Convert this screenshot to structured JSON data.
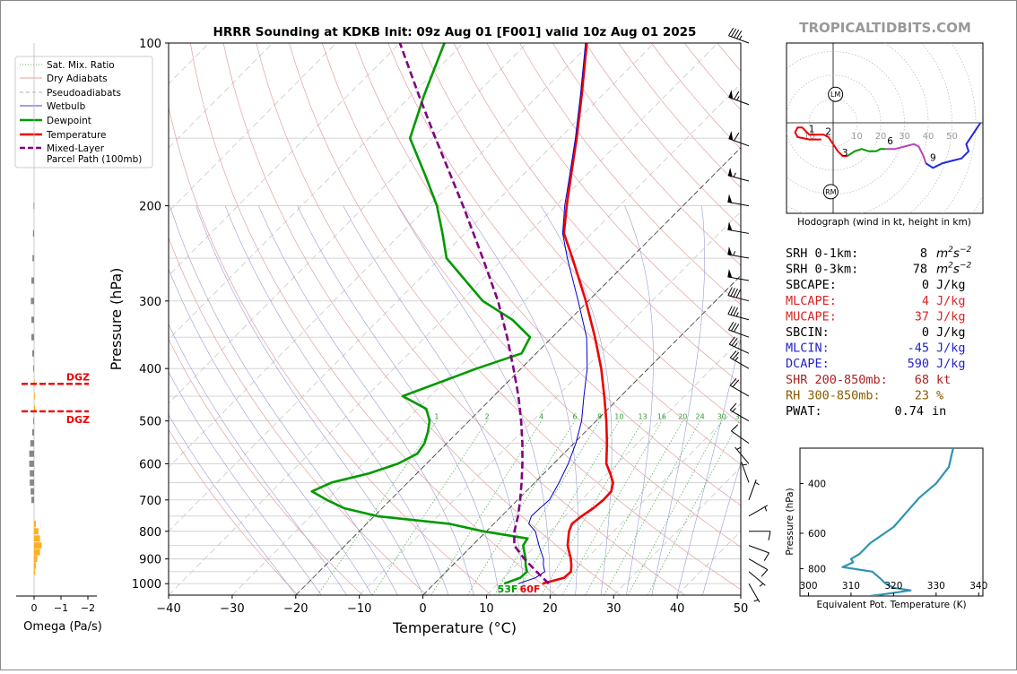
{
  "brand": "TROPICALTIDBITS.COM",
  "chart_data": {
    "type": "skew-t",
    "title": "HRRR Sounding at KDKB Init: 09z Aug 01 [F001] valid 10z Aug 01 2025",
    "xlabel": "Temperature (°C)",
    "ylabel": "Pressure (hPa)",
    "xlim": [
      -40,
      50
    ],
    "ylim": [
      1050,
      100
    ],
    "x_ticks": [
      -40,
      -30,
      -20,
      -10,
      0,
      10,
      20,
      30,
      40,
      50
    ],
    "p_ticks": [
      100,
      200,
      300,
      400,
      500,
      600,
      700,
      800,
      900,
      1000
    ],
    "y_scale": "log",
    "grid": true,
    "mixing_ratio_labels": [
      "1",
      "2",
      "4",
      "6",
      "8",
      "10",
      "13",
      "16",
      "20",
      "24",
      "30",
      "36"
    ],
    "mixing_ratio_values": [
      1,
      2,
      4,
      6,
      8,
      10,
      13,
      16,
      20,
      24,
      30,
      36
    ],
    "legend": {
      "placement": "upper-left-outside",
      "entries": [
        {
          "label": "Sat. Mix. Ratio",
          "style": "dotted",
          "color": "#2ca02c"
        },
        {
          "label": "Dry Adiabats",
          "style": "solid-thin",
          "color": "#e08080"
        },
        {
          "label": "Pseudoadiabats",
          "style": "dashed-thin",
          "color": "#999999"
        },
        {
          "label": "Wetbulb",
          "style": "solid-thin",
          "color": "#0000cc"
        },
        {
          "label": "Dewpoint",
          "style": "solid-thick",
          "color": "#009900"
        },
        {
          "label": "Temperature",
          "style": "solid-thick",
          "color": "#ee0000"
        },
        {
          "label": "Mixed-Layer\nParcel Path (100mb)",
          "style": "dashed-thick",
          "color": "#800080"
        }
      ]
    },
    "series": [
      {
        "name": "Temperature",
        "color": "#ee0000",
        "points": [
          [
            1000,
            17
          ],
          [
            975,
            19.5
          ],
          [
            950,
            19.6
          ],
          [
            925,
            18.7
          ],
          [
            900,
            17.6
          ],
          [
            850,
            15
          ],
          [
            800,
            13
          ],
          [
            775,
            12.3
          ],
          [
            750,
            12.6
          ],
          [
            725,
            13.2
          ],
          [
            700,
            13.5
          ],
          [
            675,
            13.4
          ],
          [
            650,
            12.3
          ],
          [
            625,
            10.4
          ],
          [
            600,
            8.3
          ],
          [
            550,
            5.2
          ],
          [
            500,
            1.6
          ],
          [
            450,
            -2.6
          ],
          [
            400,
            -7.4
          ],
          [
            350,
            -13.3
          ],
          [
            300,
            -20.4
          ],
          [
            250,
            -29.2
          ],
          [
            225,
            -34.4
          ],
          [
            200,
            -38.3
          ],
          [
            175,
            -42.5
          ],
          [
            150,
            -47.3
          ],
          [
            125,
            -53.2
          ],
          [
            100,
            -60.6
          ]
        ]
      },
      {
        "name": "Dewpoint",
        "color": "#009900",
        "points": [
          [
            1000,
            11
          ],
          [
            975,
            12.6
          ],
          [
            950,
            12.7
          ],
          [
            925,
            11.5
          ],
          [
            900,
            10.5
          ],
          [
            850,
            8
          ],
          [
            825,
            7.6
          ],
          [
            800,
            -0.5
          ],
          [
            775,
            -7
          ],
          [
            750,
            -19.5
          ],
          [
            725,
            -26
          ],
          [
            700,
            -30
          ],
          [
            675,
            -33.7
          ],
          [
            650,
            -32
          ],
          [
            625,
            -27.5
          ],
          [
            600,
            -24.5
          ],
          [
            575,
            -23
          ],
          [
            550,
            -23.5
          ],
          [
            525,
            -24.7
          ],
          [
            500,
            -26.2
          ],
          [
            475,
            -28.6
          ],
          [
            450,
            -34.3
          ],
          [
            400,
            -27
          ],
          [
            375,
            -22.3
          ],
          [
            350,
            -23.5
          ],
          [
            325,
            -29
          ],
          [
            300,
            -36.6
          ],
          [
            250,
            -49
          ],
          [
            225,
            -53.5
          ],
          [
            200,
            -58.7
          ],
          [
            175,
            -65.5
          ],
          [
            150,
            -73.5
          ],
          [
            125,
            -78
          ],
          [
            100,
            -83
          ]
        ]
      },
      {
        "name": "Wetbulb",
        "color": "#0000cc",
        "points": [
          [
            1000,
            13.2
          ],
          [
            975,
            15
          ],
          [
            950,
            15.5
          ],
          [
            925,
            14.3
          ],
          [
            900,
            13.3
          ],
          [
            850,
            10.5
          ],
          [
            800,
            7.7
          ],
          [
            775,
            5.5
          ],
          [
            750,
            4.7
          ],
          [
            725,
            4.8
          ],
          [
            700,
            5
          ],
          [
            650,
            3.8
          ],
          [
            600,
            2.3
          ],
          [
            550,
            0.3
          ],
          [
            500,
            -2.3
          ],
          [
            450,
            -5.8
          ],
          [
            400,
            -9.6
          ],
          [
            350,
            -14.6
          ],
          [
            300,
            -21.6
          ],
          [
            250,
            -30
          ],
          [
            225,
            -34.6
          ],
          [
            200,
            -38.6
          ],
          [
            175,
            -42.7
          ],
          [
            150,
            -47.5
          ],
          [
            125,
            -53.4
          ],
          [
            100,
            -60.8
          ]
        ]
      },
      {
        "name": "Mixed-Layer\nParcel Path (100mb)",
        "color": "#800080",
        "points": [
          [
            1000,
            18
          ],
          [
            950,
            14.2
          ],
          [
            900,
            10.3
          ],
          [
            850,
            6.6
          ],
          [
            800,
            4.4
          ],
          [
            750,
            2.6
          ],
          [
            700,
            0.4
          ],
          [
            650,
            -2.1
          ],
          [
            600,
            -4.9
          ],
          [
            550,
            -8.1
          ],
          [
            500,
            -11.8
          ],
          [
            450,
            -16.1
          ],
          [
            400,
            -21.2
          ],
          [
            350,
            -27.1
          ],
          [
            300,
            -34.2
          ],
          [
            250,
            -43.3
          ],
          [
            200,
            -54.6
          ],
          [
            150,
            -69.5
          ],
          [
            125,
            -78.8
          ],
          [
            100,
            -90
          ]
        ]
      }
    ],
    "surface_labels": {
      "dewpoint": "53F",
      "temperature": "60F"
    },
    "wind_barbs": [
      {
        "p": 100,
        "spd": 45,
        "dir": 290
      },
      {
        "p": 130,
        "spd": 65,
        "dir": 290
      },
      {
        "p": 155,
        "spd": 60,
        "dir": 290
      },
      {
        "p": 180,
        "spd": 55,
        "dir": 285
      },
      {
        "p": 200,
        "spd": 50,
        "dir": 280
      },
      {
        "p": 225,
        "spd": 50,
        "dir": 280
      },
      {
        "p": 250,
        "spd": 55,
        "dir": 280
      },
      {
        "p": 275,
        "spd": 50,
        "dir": 280
      },
      {
        "p": 300,
        "spd": 40,
        "dir": 285
      },
      {
        "p": 325,
        "spd": 35,
        "dir": 285
      },
      {
        "p": 350,
        "spd": 30,
        "dir": 290
      },
      {
        "p": 375,
        "spd": 25,
        "dir": 295
      },
      {
        "p": 400,
        "spd": 25,
        "dir": 300
      },
      {
        "p": 450,
        "spd": 20,
        "dir": 300
      },
      {
        "p": 500,
        "spd": 15,
        "dir": 300
      },
      {
        "p": 550,
        "spd": 10,
        "dir": 305
      },
      {
        "p": 600,
        "spd": 5,
        "dir": 320
      },
      {
        "p": 650,
        "spd": 5,
        "dir": 340
      },
      {
        "p": 700,
        "spd": 5,
        "dir": 20
      },
      {
        "p": 750,
        "spd": 5,
        "dir": 60
      },
      {
        "p": 800,
        "spd": 10,
        "dir": 90
      },
      {
        "p": 850,
        "spd": 10,
        "dir": 110
      },
      {
        "p": 900,
        "spd": 10,
        "dir": 120
      },
      {
        "p": 950,
        "spd": 5,
        "dir": 130
      },
      {
        "p": 1000,
        "spd": 5,
        "dir": 150
      }
    ],
    "omega": {
      "xlabel": "Omega (Pa/s)",
      "x_ticks": [
        "0",
        "−1",
        "−2"
      ],
      "dgz_labels": [
        "DGZ",
        "DGZ"
      ],
      "dgz_pressures": [
        427,
        480
      ],
      "bars": [
        {
          "p": 200,
          "v": -0.02
        },
        {
          "p": 225,
          "v": -0.04
        },
        {
          "p": 250,
          "v": -0.06
        },
        {
          "p": 275,
          "v": -0.1
        },
        {
          "p": 300,
          "v": -0.12
        },
        {
          "p": 325,
          "v": -0.1
        },
        {
          "p": 350,
          "v": -0.1
        },
        {
          "p": 375,
          "v": -0.07
        },
        {
          "p": 400,
          "v": -0.03
        },
        {
          "p": 425,
          "v": 0.01
        },
        {
          "p": 450,
          "v": 0.03
        },
        {
          "p": 475,
          "v": 0.04
        },
        {
          "p": 500,
          "v": -0.03
        },
        {
          "p": 525,
          "v": -0.07
        },
        {
          "p": 550,
          "v": -0.14
        },
        {
          "p": 575,
          "v": -0.18
        },
        {
          "p": 600,
          "v": -0.18
        },
        {
          "p": 625,
          "v": -0.16
        },
        {
          "p": 650,
          "v": -0.16
        },
        {
          "p": 675,
          "v": -0.13
        },
        {
          "p": 700,
          "v": -0.1
        },
        {
          "p": 775,
          "v": 0.07
        },
        {
          "p": 800,
          "v": 0.16
        },
        {
          "p": 825,
          "v": 0.22
        },
        {
          "p": 850,
          "v": 0.28
        },
        {
          "p": 875,
          "v": 0.22
        },
        {
          "p": 900,
          "v": 0.12
        },
        {
          "p": 925,
          "v": 0.07
        },
        {
          "p": 950,
          "v": 0.04
        }
      ]
    },
    "hodograph": {
      "caption": "Hodograph (wind in kt, height in km)",
      "ring_labels": [
        "10",
        "10",
        "20",
        "30",
        "40",
        "50"
      ],
      "ring_values": [
        10,
        10,
        20,
        30,
        40,
        50
      ],
      "lm_label": "LM",
      "rm_label": "RM",
      "lm": [
        1,
        12
      ],
      "rm": [
        -1,
        -29
      ],
      "height_labels": [
        {
          "t": "1",
          "u": -9,
          "v": -4
        },
        {
          "t": "2",
          "u": -2,
          "v": -5
        },
        {
          "t": "3",
          "u": 5,
          "v": -14
        },
        {
          "t": "6",
          "u": 24,
          "v": -9
        },
        {
          "t": "9",
          "u": 42,
          "v": -16
        }
      ],
      "segments": [
        {
          "color": "#ee0000",
          "points": [
            [
              -5,
              -7
            ],
            [
              -10,
              -7
            ],
            [
              -15,
              -6
            ],
            [
              -16,
              -4
            ],
            [
              -15,
              -2
            ],
            [
              -13,
              -2
            ],
            [
              -12,
              -3
            ],
            [
              -10,
              -5
            ],
            [
              -8,
              -5
            ],
            [
              -6,
              -5
            ],
            [
              -4,
              -5
            ],
            [
              -2,
              -6
            ],
            [
              0,
              -9
            ],
            [
              2,
              -12
            ],
            [
              4,
              -14
            ],
            [
              6,
              -14
            ]
          ]
        },
        {
          "color": "#009900",
          "points": [
            [
              6,
              -14
            ],
            [
              9,
              -12
            ],
            [
              12,
              -11
            ],
            [
              15,
              -12
            ],
            [
              18,
              -12
            ],
            [
              20,
              -11
            ],
            [
              22,
              -11
            ]
          ]
        },
        {
          "color": "#bb44bb",
          "points": [
            [
              22,
              -11
            ],
            [
              26,
              -11
            ],
            [
              30,
              -10
            ],
            [
              34,
              -9
            ],
            [
              36,
              -10
            ],
            [
              38,
              -14
            ],
            [
              39,
              -17
            ]
          ]
        },
        {
          "color": "#1f2bdb",
          "points": [
            [
              39,
              -17
            ],
            [
              42,
              -19
            ],
            [
              46,
              -17
            ],
            [
              50,
              -16
            ],
            [
              54,
              -15
            ],
            [
              57,
              -12
            ],
            [
              56,
              -9
            ],
            [
              58,
              -6
            ],
            [
              60,
              -3
            ],
            [
              62,
              0
            ]
          ]
        }
      ]
    },
    "params": [
      {
        "label": "SRH 0-1km:",
        "value": "8",
        "unit": "m2s-2",
        "color": "#000000"
      },
      {
        "label": "SRH 0-3km:",
        "value": "78",
        "unit": "m2s-2",
        "color": "#000000"
      },
      {
        "label": "SBCAPE:",
        "value": "0",
        "unit": "J/kg",
        "color": "#000000"
      },
      {
        "label": "MLCAPE:",
        "value": "4",
        "unit": "J/kg",
        "color": "#dd2222"
      },
      {
        "label": "MUCAPE:",
        "value": "37",
        "unit": "J/kg",
        "color": "#dd2222"
      },
      {
        "label": "SBCIN:",
        "value": "0",
        "unit": "J/kg",
        "color": "#000000"
      },
      {
        "label": "MLCIN:",
        "value": "-45",
        "unit": "J/kg",
        "color": "#2222cc"
      },
      {
        "label": "DCAPE:",
        "value": "590",
        "unit": "J/kg",
        "color": "#2222cc"
      },
      {
        "label": "SHR 200-850mb:",
        "value": "68",
        "unit": "kt",
        "color": "#aa2222"
      },
      {
        "label": "RH 300-850mb:",
        "value": "23",
        "unit": "%",
        "color": "#8a5a00"
      },
      {
        "label": "PWAT:",
        "value": "0.74",
        "unit": "in",
        "color": "#000000"
      }
    ],
    "theta_e": {
      "xlabel": "Equivalent Pot. Temperature (K)",
      "ylabel": "Pressure (hPa)",
      "x_ticks": [
        300,
        310,
        320,
        330,
        340
      ],
      "y_ticks": [
        400,
        600,
        800
      ],
      "xlim": [
        298,
        341
      ],
      "ylim": [
        1000,
        300
      ],
      "color": "#2e94b0",
      "points": [
        [
          1000,
          314.5
        ],
        [
          980,
          319
        ],
        [
          955,
          324
        ],
        [
          935,
          320
        ],
        [
          900,
          318
        ],
        [
          870,
          317
        ],
        [
          820,
          315
        ],
        [
          790,
          308
        ],
        [
          760,
          310.5
        ],
        [
          740,
          310
        ],
        [
          710,
          312
        ],
        [
          650,
          314.5
        ],
        [
          570,
          320
        ],
        [
          450,
          326
        ],
        [
          400,
          330
        ],
        [
          350,
          333
        ],
        [
          300,
          334
        ]
      ]
    }
  }
}
